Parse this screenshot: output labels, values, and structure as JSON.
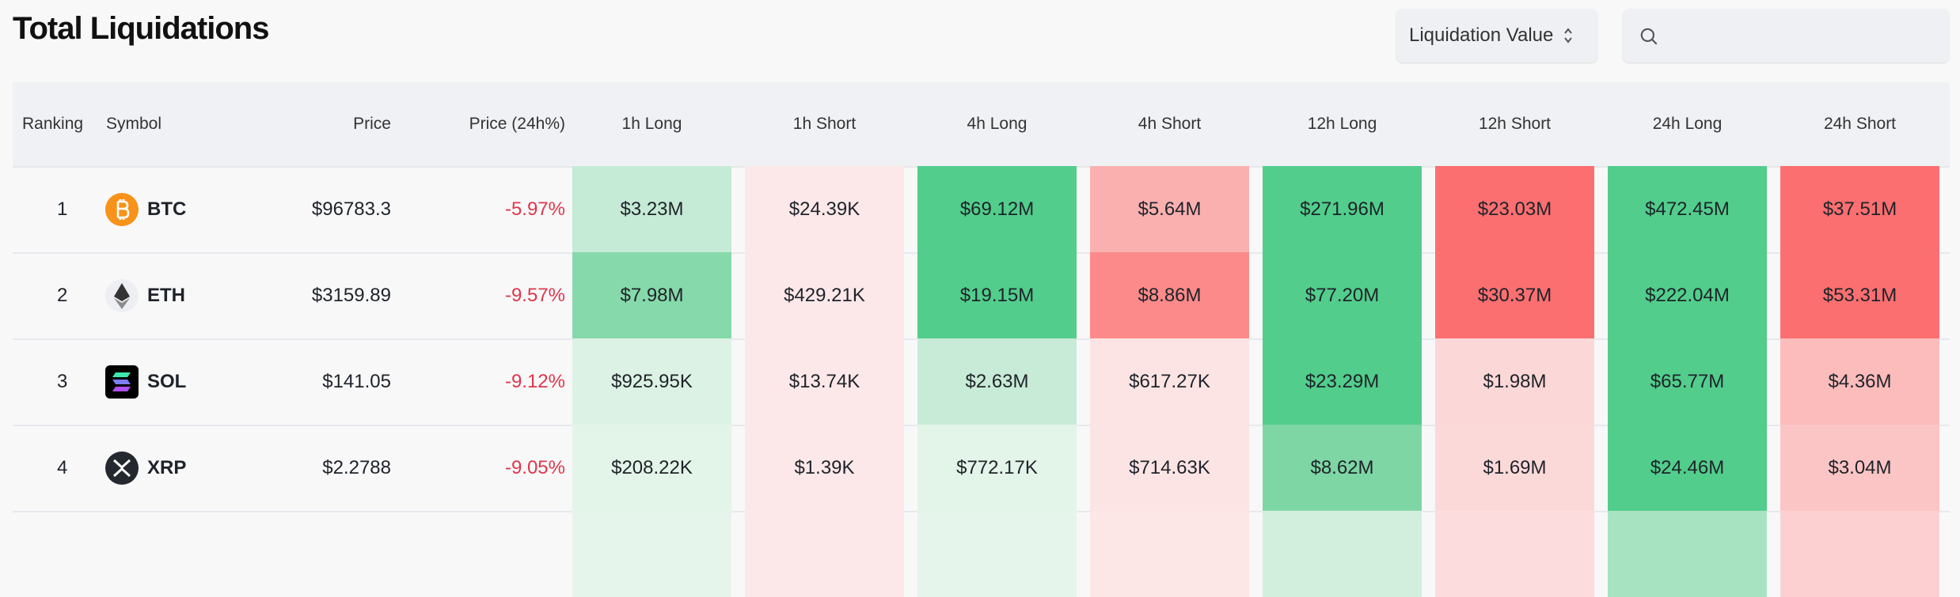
{
  "header": {
    "title": "Total Liquidations",
    "sort_select": {
      "value": "Liquidation Value"
    },
    "search": {
      "placeholder": ""
    }
  },
  "table": {
    "columns": [
      "Ranking",
      "Symbol",
      "Price",
      "Price (24h%)",
      "1h Long",
      "1h Short",
      "4h Long",
      "4h Short",
      "12h Long",
      "12h Short",
      "24h Long",
      "24h Short"
    ],
    "rows": [
      {
        "rank": "1",
        "symbol": "BTC",
        "icon": "bitcoin-icon",
        "price": "$96783.3",
        "change": "-5.97%",
        "values": [
          "$3.23M",
          "$24.39K",
          "$69.12M",
          "$5.64M",
          "$271.96M",
          "$23.03M",
          "$472.45M",
          "$37.51M"
        ],
        "colors": [
          "#c5ead5",
          "#fce8e9",
          "#52cd8c",
          "#fbb0b0",
          "#52cd8c",
          "#fb6f70",
          "#52cd8c",
          "#fb6f70"
        ]
      },
      {
        "rank": "2",
        "symbol": "ETH",
        "icon": "ethereum-icon",
        "price": "$3159.89",
        "change": "-9.57%",
        "values": [
          "$7.98M",
          "$429.21K",
          "$19.15M",
          "$8.86M",
          "$77.20M",
          "$30.37M",
          "$222.04M",
          "$53.31M"
        ],
        "colors": [
          "#86d9aa",
          "#fce8e9",
          "#52cd8c",
          "#fc8a8a",
          "#52cd8c",
          "#fb6f70",
          "#52cd8c",
          "#fb6f70"
        ]
      },
      {
        "rank": "3",
        "symbol": "SOL",
        "icon": "solana-icon",
        "price": "$141.05",
        "change": "-9.12%",
        "values": [
          "$925.95K",
          "$13.74K",
          "$2.63M",
          "$617.27K",
          "$23.29M",
          "$1.98M",
          "$65.77M",
          "$4.36M"
        ],
        "colors": [
          "#dcf2e4",
          "#fce8e9",
          "#c8ebd7",
          "#fce4e4",
          "#52cd8c",
          "#fcd7d7",
          "#52cd8c",
          "#fcbcbc"
        ]
      },
      {
        "rank": "4",
        "symbol": "XRP",
        "icon": "xrp-icon",
        "price": "$2.2788",
        "change": "-9.05%",
        "values": [
          "$208.22K",
          "$1.39K",
          "$772.17K",
          "$714.63K",
          "$8.62M",
          "$1.69M",
          "$24.46M",
          "$3.04M"
        ],
        "colors": [
          "#e3f4e9",
          "#fce8e9",
          "#e3f4e9",
          "#fce4e4",
          "#7fd6a5",
          "#fcd9d9",
          "#52cd8c",
          "#fcc5c5"
        ]
      }
    ],
    "partial_row_colors": [
      "#e6f5eb",
      "#fce8e9",
      "#e6f5eb",
      "#fce6e6",
      "#d2efdd",
      "#fcdcdc",
      "#a8e3c1",
      "#fcd0d0"
    ]
  }
}
